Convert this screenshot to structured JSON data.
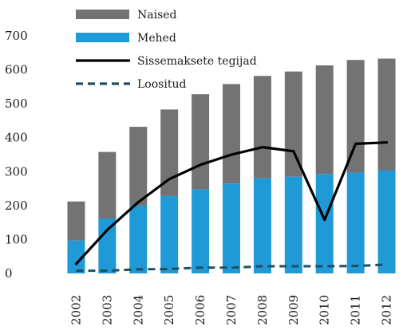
{
  "chart_data": {
    "type": "bar",
    "stacked": true,
    "categories": [
      "2002",
      "2003",
      "2004",
      "2005",
      "2006",
      "2007",
      "2008",
      "2009",
      "2010",
      "2011",
      "2012"
    ],
    "series": [
      {
        "name": "Mehed",
        "kind": "bar",
        "color": "#1f9ad6",
        "values": [
          97,
          162,
          200,
          228,
          248,
          265,
          280,
          285,
          293,
          297,
          303
        ]
      },
      {
        "name": "Naised",
        "kind": "bar",
        "color": "#737373",
        "values": [
          115,
          196,
          232,
          255,
          280,
          293,
          302,
          310,
          320,
          332,
          330
        ]
      },
      {
        "name": "Sissemaksete tegijad",
        "kind": "line",
        "color": "#000000",
        "style": "solid",
        "values": [
          28,
          128,
          210,
          278,
          320,
          350,
          372,
          360,
          158,
          382,
          386
        ]
      },
      {
        "name": "Loositud",
        "kind": "line",
        "color": "#1f4e63",
        "style": "dashed",
        "values": [
          8,
          8,
          12,
          13,
          17,
          17,
          21,
          21,
          21,
          22,
          26
        ]
      }
    ],
    "legend_order": [
      "Naised",
      "Mehed",
      "Sissemaksete tegijad",
      "Loositud"
    ],
    "title": "",
    "xlabel": "",
    "ylabel": "",
    "ylim": [
      0,
      700
    ],
    "yticks": [
      "0",
      "100",
      "200",
      "300",
      "400",
      "500",
      "600",
      "700"
    ],
    "grid": false,
    "legend_position": "top-left"
  }
}
